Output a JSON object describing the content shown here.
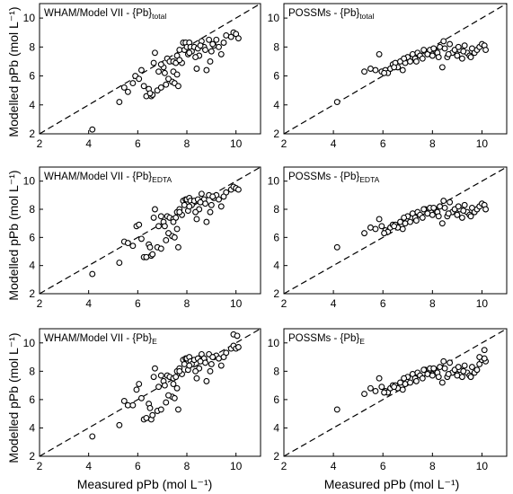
{
  "y_axis_label": "Modelled pPb (mol L⁻¹)",
  "x_axis_label": "Measured pPb (mol L⁻¹)",
  "chart_data": [
    {
      "type": "scatter",
      "title_main": "WHAM/Model VII - {Pb}",
      "title_sub": "total",
      "xlim": [
        2,
        11
      ],
      "ylim": [
        2,
        11
      ],
      "xticks": [
        2,
        4,
        6,
        8,
        10
      ],
      "yticks": [
        2,
        4,
        6,
        8,
        10
      ],
      "reference_line": "1:1",
      "x": [
        4.15,
        5.25,
        5.45,
        5.6,
        5.8,
        5.9,
        6.05,
        6.15,
        6.25,
        6.35,
        6.45,
        6.55,
        6.6,
        6.7,
        6.8,
        6.85,
        6.95,
        7.05,
        7.1,
        7.2,
        7.3,
        7.4,
        7.45,
        7.5,
        7.55,
        7.6,
        7.65,
        7.7,
        7.8,
        7.85,
        7.9,
        7.95,
        8.0,
        8.05,
        8.1,
        8.15,
        8.2,
        8.3,
        8.4,
        8.45,
        8.5,
        8.6,
        8.7,
        8.8,
        8.9,
        9.0,
        9.1,
        9.2,
        9.3,
        9.4,
        9.6,
        9.8,
        9.9,
        10.0,
        10.1,
        7.25,
        7.45,
        7.7,
        8.35,
        8.75,
        8.95,
        6.95,
        7.15,
        8.55,
        9.05,
        6.5,
        6.65,
        7.6,
        8.1,
        9.5
      ],
      "y": [
        2.3,
        4.2,
        5.2,
        4.9,
        5.5,
        6.0,
        5.8,
        6.4,
        5.3,
        4.6,
        5.1,
        4.6,
        4.7,
        7.6,
        5.0,
        6.3,
        5.2,
        6.6,
        6.2,
        7.2,
        7.0,
        5.6,
        7.0,
        5.5,
        6.9,
        7.4,
        5.3,
        7.8,
        6.9,
        8.3,
        7.8,
        8.3,
        8.0,
        7.5,
        8.3,
        8.0,
        7.7,
        8.0,
        6.5,
        7.9,
        7.4,
        8.4,
        8.0,
        6.4,
        8.5,
        7.7,
        8.1,
        8.5,
        8.0,
        7.5,
        8.8,
        8.7,
        9.0,
        8.9,
        8.6,
        5.8,
        6.3,
        7.1,
        7.3,
        7.8,
        7.0,
        6.8,
        5.4,
        8.1,
        8.2,
        4.8,
        6.9,
        6.1,
        7.6,
        8.3
      ],
      "marker": "open-circle"
    },
    {
      "type": "scatter",
      "title_main": "POSSMs - {Pb}",
      "title_sub": "total",
      "xlim": [
        2,
        11
      ],
      "ylim": [
        2,
        11
      ],
      "xticks": [
        2,
        4,
        6,
        8,
        10
      ],
      "yticks": [
        2,
        4,
        6,
        8,
        10
      ],
      "reference_line": "1:1",
      "x": [
        4.15,
        5.25,
        5.5,
        5.7,
        5.85,
        5.95,
        6.1,
        6.2,
        6.3,
        6.4,
        6.5,
        6.6,
        6.7,
        6.8,
        6.9,
        7.0,
        7.1,
        7.2,
        7.3,
        7.4,
        7.5,
        7.6,
        7.7,
        7.8,
        7.9,
        8.0,
        8.1,
        8.2,
        8.3,
        8.4,
        8.5,
        8.6,
        8.7,
        8.8,
        8.9,
        9.0,
        9.1,
        9.2,
        9.3,
        9.4,
        9.5,
        9.6,
        9.7,
        9.8,
        9.9,
        10.0,
        10.1,
        10.15,
        6.05,
        6.45,
        6.85,
        7.35,
        7.65,
        8.05,
        8.25,
        8.45,
        8.65,
        9.05,
        9.25,
        9.55
      ],
      "y": [
        4.2,
        6.3,
        6.5,
        6.4,
        7.5,
        6.3,
        6.4,
        6.2,
        6.5,
        6.8,
        6.9,
        6.6,
        7.0,
        6.4,
        6.9,
        7.3,
        7.0,
        7.5,
        7.2,
        7.6,
        7.4,
        7.2,
        7.7,
        7.5,
        7.8,
        7.4,
        7.8,
        7.6,
        8.0,
        6.6,
        7.9,
        7.3,
        8.2,
        7.6,
        7.8,
        7.4,
        7.8,
        7.2,
        8.1,
        7.6,
        7.4,
        7.9,
        7.6,
        7.8,
        8.0,
        8.2,
        8.1,
        7.8,
        6.2,
        6.6,
        7.2,
        7.0,
        7.8,
        7.9,
        7.3,
        8.4,
        7.5,
        8.0,
        7.7,
        7.3
      ],
      "marker": "open-circle"
    },
    {
      "type": "scatter",
      "title_main": "WHAM/Model VII - {Pb}",
      "title_sub": "EDTA",
      "xlim": [
        2,
        11
      ],
      "ylim": [
        2,
        11
      ],
      "xticks": [
        2,
        4,
        6,
        8,
        10
      ],
      "yticks": [
        2,
        4,
        6,
        8,
        10
      ],
      "reference_line": "1:1",
      "x": [
        4.15,
        5.25,
        5.45,
        5.6,
        5.8,
        5.95,
        6.05,
        6.15,
        6.25,
        6.35,
        6.45,
        6.55,
        6.6,
        6.7,
        6.8,
        6.85,
        6.95,
        7.05,
        7.1,
        7.2,
        7.3,
        7.4,
        7.45,
        7.5,
        7.55,
        7.6,
        7.65,
        7.7,
        7.8,
        7.85,
        7.9,
        7.95,
        8.0,
        8.05,
        8.1,
        8.15,
        8.2,
        8.3,
        8.4,
        8.45,
        8.5,
        8.6,
        8.7,
        8.8,
        8.9,
        9.0,
        9.1,
        9.2,
        9.3,
        9.4,
        9.6,
        9.8,
        9.9,
        10.0,
        10.1,
        7.25,
        7.45,
        7.7,
        8.35,
        8.75,
        8.95,
        6.95,
        7.15,
        8.55,
        9.05,
        6.5,
        6.65,
        7.6,
        8.1,
        9.5
      ],
      "y": [
        3.4,
        4.2,
        5.7,
        5.6,
        5.4,
        6.8,
        6.9,
        5.9,
        4.6,
        4.6,
        5.5,
        4.7,
        4.8,
        8.0,
        5.3,
        6.8,
        5.2,
        7.1,
        6.8,
        7.5,
        7.4,
        6.1,
        7.3,
        6.0,
        7.4,
        7.8,
        5.3,
        8.0,
        7.6,
        8.6,
        8.3,
        8.7,
        8.7,
        7.9,
        8.8,
        8.6,
        8.3,
        8.6,
        7.3,
        8.7,
        8.0,
        9.1,
        8.7,
        7.1,
        9.0,
        8.3,
        8.8,
        9.0,
        8.7,
        8.2,
        9.2,
        9.4,
        9.6,
        9.5,
        9.4,
        6.3,
        7.1,
        7.8,
        7.8,
        8.4,
        7.8,
        7.5,
        5.8,
        8.5,
        8.9,
        5.3,
        7.4,
        6.6,
        8.2,
        8.9
      ],
      "marker": "open-circle"
    },
    {
      "type": "scatter",
      "title_main": "POSSMs - {Pb}",
      "title_sub": "EDTA",
      "xlim": [
        2,
        11
      ],
      "ylim": [
        2,
        11
      ],
      "xticks": [
        2,
        4,
        6,
        8,
        10
      ],
      "yticks": [
        2,
        4,
        6,
        8,
        10
      ],
      "reference_line": "1:1",
      "x": [
        4.15,
        5.25,
        5.5,
        5.7,
        5.85,
        5.95,
        6.1,
        6.2,
        6.3,
        6.4,
        6.5,
        6.6,
        6.7,
        6.8,
        6.9,
        7.0,
        7.1,
        7.2,
        7.3,
        7.4,
        7.5,
        7.6,
        7.7,
        7.8,
        7.9,
        8.0,
        8.1,
        8.2,
        8.3,
        8.4,
        8.5,
        8.6,
        8.7,
        8.8,
        8.9,
        9.0,
        9.1,
        9.2,
        9.3,
        9.4,
        9.5,
        9.6,
        9.7,
        9.8,
        9.9,
        10.0,
        10.1,
        10.15,
        6.05,
        6.45,
        6.85,
        7.35,
        7.65,
        8.05,
        8.25,
        8.45,
        8.65,
        9.05,
        9.25,
        9.55
      ],
      "y": [
        5.3,
        6.3,
        6.7,
        6.6,
        7.3,
        6.8,
        6.5,
        6.4,
        6.7,
        6.9,
        6.9,
        6.7,
        7.1,
        6.6,
        7.0,
        7.5,
        7.1,
        7.7,
        7.4,
        7.8,
        7.6,
        7.4,
        8.0,
        7.7,
        8.1,
        7.6,
        8.0,
        7.8,
        8.2,
        7.0,
        8.1,
        7.5,
        8.5,
        7.8,
        8.0,
        7.6,
        8.0,
        7.4,
        8.3,
        7.8,
        7.6,
        8.1,
        7.8,
        8.0,
        8.2,
        8.4,
        8.3,
        8.0,
        6.3,
        6.8,
        7.4,
        7.2,
        8.0,
        8.1,
        7.5,
        8.6,
        7.7,
        8.2,
        7.9,
        7.5
      ],
      "marker": "open-circle"
    },
    {
      "type": "scatter",
      "title_main": "WHAM/Model VII - {Pb}",
      "title_sub": "E",
      "xlim": [
        2,
        11
      ],
      "ylim": [
        2,
        11
      ],
      "xticks": [
        2,
        4,
        6,
        8,
        10
      ],
      "yticks": [
        2,
        4,
        6,
        8,
        10
      ],
      "reference_line": "1:1",
      "x": [
        4.15,
        5.25,
        5.45,
        5.6,
        5.8,
        5.95,
        6.05,
        6.15,
        6.25,
        6.35,
        6.45,
        6.55,
        6.6,
        6.7,
        6.8,
        6.85,
        6.95,
        7.05,
        7.1,
        7.2,
        7.3,
        7.4,
        7.45,
        7.5,
        7.55,
        7.6,
        7.65,
        7.7,
        7.8,
        7.85,
        7.9,
        7.95,
        8.0,
        8.05,
        8.1,
        8.15,
        8.2,
        8.3,
        8.4,
        8.45,
        8.5,
        8.6,
        8.7,
        8.8,
        8.9,
        9.0,
        9.1,
        9.2,
        9.3,
        9.4,
        9.6,
        9.8,
        9.9,
        10.0,
        10.1,
        7.25,
        7.45,
        7.7,
        8.35,
        8.75,
        8.95,
        6.95,
        7.15,
        8.55,
        9.05,
        6.5,
        6.65,
        7.6,
        8.1,
        9.5,
        9.9,
        10.05
      ],
      "y": [
        3.4,
        4.2,
        5.9,
        5.6,
        5.6,
        6.7,
        7.1,
        6.1,
        4.6,
        4.7,
        5.7,
        4.6,
        4.9,
        8.2,
        5.2,
        6.9,
        5.3,
        7.3,
        7.0,
        7.7,
        7.6,
        6.2,
        7.5,
        6.1,
        7.6,
        8.0,
        5.3,
        8.2,
        7.8,
        8.8,
        8.5,
        8.9,
        8.9,
        8.1,
        9.0,
        8.7,
        8.5,
        8.8,
        7.5,
        8.9,
        8.2,
        9.2,
        8.9,
        7.3,
        9.2,
        8.5,
        9.0,
        9.1,
        8.9,
        8.4,
        9.3,
        9.6,
        9.8,
        9.6,
        9.7,
        6.3,
        7.1,
        8.0,
        8.0,
        8.6,
        8.0,
        7.7,
        5.8,
        8.7,
        9.0,
        5.4,
        7.6,
        6.8,
        8.4,
        9.0,
        10.6,
        10.5
      ],
      "marker": "open-circle"
    },
    {
      "type": "scatter",
      "title_main": "POSSMs - {Pb}",
      "title_sub": "E",
      "xlim": [
        2,
        11
      ],
      "ylim": [
        2,
        11
      ],
      "xticks": [
        2,
        4,
        6,
        8,
        10
      ],
      "yticks": [
        2,
        4,
        6,
        8,
        10
      ],
      "reference_line": "1:1",
      "x": [
        4.15,
        5.25,
        5.5,
        5.7,
        5.85,
        5.95,
        6.1,
        6.2,
        6.3,
        6.4,
        6.5,
        6.6,
        6.7,
        6.8,
        6.9,
        7.0,
        7.1,
        7.2,
        7.3,
        7.4,
        7.5,
        7.6,
        7.7,
        7.8,
        7.9,
        8.0,
        8.1,
        8.2,
        8.3,
        8.4,
        8.5,
        8.6,
        8.7,
        8.8,
        8.9,
        9.0,
        9.1,
        9.2,
        9.3,
        9.4,
        9.5,
        9.6,
        9.7,
        9.8,
        9.9,
        10.0,
        10.1,
        10.15,
        6.05,
        6.45,
        6.85,
        7.35,
        7.65,
        8.05,
        8.25,
        8.45,
        8.65,
        9.05,
        9.25,
        9.55,
        9.9,
        10.1
      ],
      "y": [
        5.3,
        6.4,
        6.8,
        6.6,
        7.5,
        6.9,
        6.6,
        6.5,
        6.8,
        7.0,
        7.0,
        6.8,
        7.2,
        6.7,
        7.1,
        7.6,
        7.2,
        7.8,
        7.5,
        7.9,
        7.7,
        7.5,
        8.1,
        7.8,
        8.2,
        7.7,
        8.1,
        7.9,
        8.3,
        7.2,
        8.2,
        7.6,
        8.6,
        7.9,
        8.1,
        7.7,
        8.1,
        7.6,
        8.4,
        7.9,
        7.7,
        8.3,
        7.9,
        8.1,
        8.5,
        8.8,
        9.5,
        8.7,
        6.5,
        6.9,
        7.5,
        7.3,
        8.1,
        8.2,
        7.6,
        8.7,
        7.8,
        8.3,
        8.0,
        7.6,
        9.0,
        8.9
      ],
      "marker": "open-circle"
    }
  ]
}
